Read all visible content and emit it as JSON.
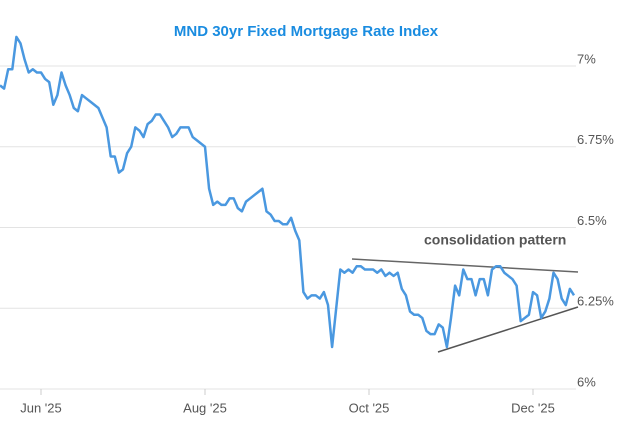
{
  "chart_data": {
    "type": "line",
    "title": "MND 30yr Fixed Mortgage Rate Index",
    "annotation": "consolidation pattern",
    "categories": [
      null,
      null,
      null,
      null,
      null,
      null,
      null,
      null,
      null,
      null,
      "Jun '25",
      null,
      null,
      null,
      null,
      null,
      null,
      null,
      null,
      null,
      null,
      null,
      null,
      null,
      null,
      null,
      null,
      null,
      null,
      null,
      null,
      null,
      null,
      null,
      null,
      null,
      null,
      null,
      null,
      null,
      null,
      null,
      null,
      null,
      null,
      null,
      null,
      null,
      null,
      null,
      "Aug '25",
      null,
      null,
      null,
      null,
      null,
      null,
      null,
      null,
      null,
      null,
      null,
      null,
      null,
      null,
      null,
      null,
      null,
      null,
      null,
      null,
      null,
      null,
      null,
      null,
      null,
      null,
      null,
      null,
      null,
      null,
      null,
      null,
      null,
      null,
      null,
      null,
      null,
      null,
      null,
      "Oct '25",
      null,
      null,
      null,
      null,
      null,
      null,
      null,
      null,
      null,
      null,
      null,
      null,
      null,
      null,
      null,
      null,
      null,
      null,
      null,
      null,
      null,
      null,
      null,
      null,
      null,
      null,
      null,
      null,
      null,
      null,
      null,
      null,
      null,
      null,
      null,
      null,
      null,
      null,
      null,
      "Dec '25",
      null,
      null,
      null,
      null,
      null,
      null,
      null,
      null,
      null,
      null
    ],
    "values": [
      6.94,
      6.93,
      6.99,
      6.99,
      7.09,
      7.07,
      7.02,
      6.98,
      6.99,
      6.98,
      6.98,
      6.96,
      6.95,
      6.88,
      6.91,
      6.98,
      6.94,
      6.91,
      6.87,
      6.86,
      6.91,
      6.9,
      6.89,
      6.88,
      6.87,
      6.84,
      6.81,
      6.72,
      6.72,
      6.67,
      6.68,
      6.73,
      6.75,
      6.81,
      6.8,
      6.78,
      6.82,
      6.83,
      6.85,
      6.85,
      6.83,
      6.81,
      6.78,
      6.79,
      6.81,
      6.81,
      6.81,
      6.78,
      6.77,
      6.76,
      6.75,
      6.62,
      6.57,
      6.58,
      6.57,
      6.57,
      6.59,
      6.59,
      6.56,
      6.55,
      6.58,
      6.59,
      6.6,
      6.61,
      6.62,
      6.55,
      6.54,
      6.52,
      6.52,
      6.51,
      6.51,
      6.53,
      6.49,
      6.46,
      6.3,
      6.28,
      6.29,
      6.29,
      6.28,
      6.3,
      6.26,
      6.13,
      6.25,
      6.37,
      6.36,
      6.37,
      6.36,
      6.38,
      6.38,
      6.37,
      6.37,
      6.37,
      6.36,
      6.37,
      6.35,
      6.36,
      6.35,
      6.36,
      6.31,
      6.29,
      6.24,
      6.23,
      6.23,
      6.22,
      6.18,
      6.17,
      6.17,
      6.2,
      6.19,
      6.13,
      6.22,
      6.32,
      6.29,
      6.37,
      6.34,
      6.34,
      6.29,
      6.34,
      6.34,
      6.29,
      6.37,
      6.38,
      6.38,
      6.36,
      6.35,
      6.34,
      6.32,
      6.21,
      6.22,
      6.23,
      6.3,
      6.29,
      6.22,
      6.24,
      6.28,
      6.36,
      6.34,
      6.28,
      6.26,
      6.31,
      6.29
    ],
    "color": "#4a98e0",
    "ylim": [
      6,
      7.2
    ],
    "yticks": [
      {
        "value": 6,
        "label": "6%"
      },
      {
        "value": 6.25,
        "label": "6.25%"
      },
      {
        "value": 6.5,
        "label": "6.5%"
      },
      {
        "value": 6.75,
        "label": "6.75%"
      },
      {
        "value": 7,
        "label": "7%"
      }
    ],
    "grid": true
  }
}
